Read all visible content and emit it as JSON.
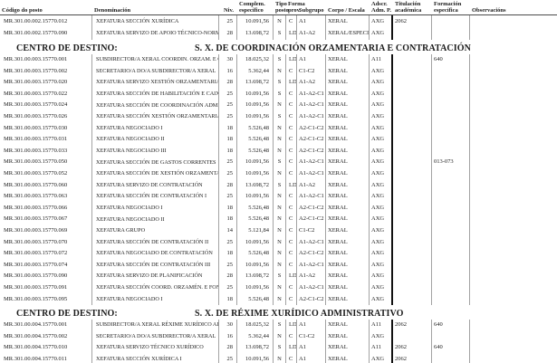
{
  "colors": {
    "text": "#1b1b1b",
    "grid_line": "#a3a3a3",
    "heavy_divider": "#111111",
    "header_rule": "#4a4a4a",
    "background": "#ffffff"
  },
  "table": {
    "headers": {
      "codigo": "Código do posto",
      "denominacion": "Denominación",
      "niv": "Niv.",
      "complem_line1": "Complem.",
      "complem_line2": "específico",
      "tipo_line1": "Tipo",
      "tipo_line2": "posto",
      "forma_line1": "Forma",
      "forma_line2": "prov.",
      "subgrupo": "Subgrupo",
      "corpo": "Corpo / Escala",
      "adscr_line1": "Adscr.",
      "adscr_line2": "Adm. P.",
      "titulacion_line1": "Titulación",
      "titulacion_line2": "académica",
      "formacion_line1": "Formación",
      "formacion_line2": "específica",
      "observacions": "Observacións"
    }
  },
  "sections": [
    {
      "title_label": "",
      "title": "",
      "rows": [
        {
          "codigo": "MR.301.00.002.15770.012",
          "denominacion": "XEFATURA SECCIÓN XURÍDICA",
          "niv": "25",
          "complem": "10.091,56",
          "tipo": "N",
          "forma": "C",
          "subgrupo": "A1",
          "corpo": "XERAL",
          "adscr": "AXG",
          "titulacion": "2062",
          "formacion": "",
          "observacions": ""
        },
        {
          "codigo": "MR.301.00.002.15770.090",
          "denominacion": "XEFATURA SERVIZO DE APOIO TÉCNICO-NORMATIVO",
          "niv": "28",
          "complem": "13.698,72",
          "tipo": "S",
          "forma": "LD",
          "subgrupo": "A1-A2",
          "corpo": "XERAL/ESPECIAL",
          "adscr": "AXG",
          "titulacion": "",
          "formacion": "",
          "observacions": ""
        }
      ]
    },
    {
      "title_label": "CENTRO DE DESTINO:",
      "title": "S. X. DE COORDINACIÓN ORZAMENTARIA E CONTRATACIÓN",
      "rows": [
        {
          "codigo": "MR.301.00.003.15770.001",
          "denominacion": "SUBDIRECTOR/A XERAL COORDIN. ORZAM. E CONTRATACIÓN",
          "niv": "30",
          "complem": "18.025,32",
          "tipo": "S",
          "forma": "LD",
          "subgrupo": "A1",
          "corpo": "XERAL",
          "adscr": "A11",
          "titulacion": "",
          "formacion": "640",
          "observacions": ""
        },
        {
          "codigo": "MR.301.00.003.15770.002",
          "denominacion": "SECRETARIO/A DO/A SUBDIRECTOR/A XERAL",
          "niv": "16",
          "complem": "5.362,44",
          "tipo": "N",
          "forma": "C",
          "subgrupo": "C1-C2",
          "corpo": "XERAL",
          "adscr": "AXG",
          "titulacion": "",
          "formacion": "",
          "observacions": ""
        },
        {
          "codigo": "MR.301.00.003.15770.020",
          "denominacion": "XEFATURA SERVIZO XESTIÓN ORZAMENTARIA",
          "niv": "28",
          "complem": "13.698,72",
          "tipo": "S",
          "forma": "LD",
          "subgrupo": "A1-A2",
          "corpo": "XERAL",
          "adscr": "AXG",
          "titulacion": "",
          "formacion": "",
          "observacions": ""
        },
        {
          "codigo": "MR.301.00.003.15770.022",
          "denominacion": "XEFATURA SECCIÓN DE HABILITACIÓN E CAIXA",
          "niv": "25",
          "complem": "10.091,56",
          "tipo": "S",
          "forma": "C",
          "subgrupo": "A1-A2-C1",
          "corpo": "XERAL",
          "adscr": "AXG",
          "titulacion": "",
          "formacion": "",
          "observacions": ""
        },
        {
          "codigo": "MR.301.00.003.15770.024",
          "denominacion": "XEFATURA SECCIÓN DE COORDINACIÓN ADMINISTRATIVA",
          "niv": "25",
          "complem": "10.091,56",
          "tipo": "N",
          "forma": "C",
          "subgrupo": "A1-A2-C1",
          "corpo": "XERAL",
          "adscr": "AXG",
          "titulacion": "",
          "formacion": "",
          "observacions": ""
        },
        {
          "codigo": "MR.301.00.003.15770.026",
          "denominacion": "XEFATURA SECCIÓN XESTIÓN ORZAMENTARIA I",
          "niv": "25",
          "complem": "10.091,56",
          "tipo": "S",
          "forma": "C",
          "subgrupo": "A1-A2-C1",
          "corpo": "XERAL",
          "adscr": "AXG",
          "titulacion": "",
          "formacion": "",
          "observacions": ""
        },
        {
          "codigo": "MR.301.00.003.15770.030",
          "denominacion": "XEFATURA NEGOCIADO I",
          "niv": "18",
          "complem": "5.526,48",
          "tipo": "N",
          "forma": "C",
          "subgrupo": "A2-C1-C2",
          "corpo": "XERAL",
          "adscr": "AXG",
          "titulacion": "",
          "formacion": "",
          "observacions": ""
        },
        {
          "codigo": "MR.301.00.003.15770.031",
          "denominacion": "XEFATURA NEGOCIADO II",
          "niv": "18",
          "complem": "5.526,48",
          "tipo": "N",
          "forma": "C",
          "subgrupo": "A2-C1-C2",
          "corpo": "XERAL",
          "adscr": "AXG",
          "titulacion": "",
          "formacion": "",
          "observacions": ""
        },
        {
          "codigo": "MR.301.00.003.15770.033",
          "denominacion": "XEFATURA NEGOCIADO III",
          "niv": "18",
          "complem": "5.526,48",
          "tipo": "N",
          "forma": "C",
          "subgrupo": "A2-C1-C2",
          "corpo": "XERAL",
          "adscr": "AXG",
          "titulacion": "",
          "formacion": "",
          "observacions": ""
        },
        {
          "codigo": "MR.301.00.003.15770.050",
          "denominacion": "XEFATURA SECCIÓN DE GASTOS CORRENTES",
          "niv": "25",
          "complem": "10.091,56",
          "tipo": "S",
          "forma": "C",
          "subgrupo": "A1-A2-C1",
          "corpo": "XERAL",
          "adscr": "AXG",
          "titulacion": "",
          "formacion": "013-073",
          "observacions": ""
        },
        {
          "codigo": "MR.301.00.003.15770.052",
          "denominacion": "XEFATURA SECCIÓN DE XESTIÓN ORZAMENTARIA II",
          "niv": "25",
          "complem": "10.091,56",
          "tipo": "N",
          "forma": "C",
          "subgrupo": "A1-A2-C1",
          "corpo": "XERAL",
          "adscr": "AXG",
          "titulacion": "",
          "formacion": "",
          "observacions": ""
        },
        {
          "codigo": "MR.301.00.003.15770.060",
          "denominacion": "XEFATURA SERVIZO DE CONTRATACIÓN",
          "niv": "28",
          "complem": "13.698,72",
          "tipo": "S",
          "forma": "LD",
          "subgrupo": "A1-A2",
          "corpo": "XERAL",
          "adscr": "AXG",
          "titulacion": "",
          "formacion": "",
          "observacions": ""
        },
        {
          "codigo": "MR.301.00.003.15770.063",
          "denominacion": "XEFATURA SECCIÓN DE CONTRATACIÓN I",
          "niv": "25",
          "complem": "10.091,56",
          "tipo": "N",
          "forma": "C",
          "subgrupo": "A1-A2-C1",
          "corpo": "XERAL",
          "adscr": "AXG",
          "titulacion": "",
          "formacion": "",
          "observacions": ""
        },
        {
          "codigo": "MR.301.00.003.15770.066",
          "denominacion": "XEFATURA NEGOCIADO I",
          "niv": "18",
          "complem": "5.526,48",
          "tipo": "N",
          "forma": "C",
          "subgrupo": "A2-C1-C2",
          "corpo": "XERAL",
          "adscr": "AXG",
          "titulacion": "",
          "formacion": "",
          "observacions": ""
        },
        {
          "codigo": "MR.301.00.003.15770.067",
          "denominacion": "XEFATURA NEGOCIADO II",
          "niv": "18",
          "complem": "5.526,48",
          "tipo": "N",
          "forma": "C",
          "subgrupo": "A2-C1-C2",
          "corpo": "XERAL",
          "adscr": "AXG",
          "titulacion": "",
          "formacion": "",
          "observacions": ""
        },
        {
          "codigo": "MR.301.00.003.15770.069",
          "denominacion": "XEFATURA GRUPO",
          "niv": "14",
          "complem": "5.121,84",
          "tipo": "N",
          "forma": "C",
          "subgrupo": "C1-C2",
          "corpo": "XERAL",
          "adscr": "AXG",
          "titulacion": "",
          "formacion": "",
          "observacions": ""
        },
        {
          "codigo": "MR.301.00.003.15770.070",
          "denominacion": "XEFATURA SECCIÓN DE CONTRATACIÓN II",
          "niv": "25",
          "complem": "10.091,56",
          "tipo": "N",
          "forma": "C",
          "subgrupo": "A1-A2-C1",
          "corpo": "XERAL",
          "adscr": "AXG",
          "titulacion": "",
          "formacion": "",
          "observacions": ""
        },
        {
          "codigo": "MR.301.00.003.15770.072",
          "denominacion": "XEFATURA NEGOCIADO DE CONTRATACIÓN",
          "niv": "18",
          "complem": "5.526,48",
          "tipo": "N",
          "forma": "C",
          "subgrupo": "A2-C1-C2",
          "corpo": "XERAL",
          "adscr": "AXG",
          "titulacion": "",
          "formacion": "",
          "observacions": ""
        },
        {
          "codigo": "MR.301.00.003.15770.074",
          "denominacion": "XEFATURA SECCIÓN DE CONTRATACIÓN III",
          "niv": "25",
          "complem": "10.091,56",
          "tipo": "N",
          "forma": "C",
          "subgrupo": "A1-A2-C1",
          "corpo": "XERAL",
          "adscr": "AXG",
          "titulacion": "",
          "formacion": "",
          "observacions": ""
        },
        {
          "codigo": "MR.301.00.003.15770.090",
          "denominacion": "XEFATURA SERVIZO DE PLANIFICACIÓN",
          "niv": "28",
          "complem": "13.698,72",
          "tipo": "S",
          "forma": "LD",
          "subgrupo": "A1-A2",
          "corpo": "XERAL",
          "adscr": "AXG",
          "titulacion": "",
          "formacion": "",
          "observacions": ""
        },
        {
          "codigo": "MR.301.00.003.15770.091",
          "denominacion": "XEFATURA SECCIÓN COORD. ORZAMÉN. E FONDOS AGRARIOS",
          "niv": "25",
          "complem": "10.091,56",
          "tipo": "N",
          "forma": "C",
          "subgrupo": "A1-A2-C1",
          "corpo": "XERAL",
          "adscr": "AXG",
          "titulacion": "",
          "formacion": "",
          "observacions": ""
        },
        {
          "codigo": "MR.301.00.003.15770.095",
          "denominacion": "XEFATURA NEGOCIADO I",
          "niv": "18",
          "complem": "5.526,48",
          "tipo": "N",
          "forma": "C",
          "subgrupo": "A2-C1-C2",
          "corpo": "XERAL",
          "adscr": "AXG",
          "titulacion": "",
          "formacion": "",
          "observacions": ""
        }
      ]
    },
    {
      "title_label": "CENTRO DE DESTINO:",
      "title": "S. X. DE RÉXIME XURÍDICO ADMINISTRATIVO",
      "rows": [
        {
          "codigo": "MR.301.00.004.15770.001",
          "denominacion": "SUBDIRECTOR/A XERAL RÉXIME XURÍDICO ADMINISTRATIVO",
          "niv": "30",
          "complem": "18.025,32",
          "tipo": "S",
          "forma": "LD",
          "subgrupo": "A1",
          "corpo": "XERAL",
          "adscr": "A11",
          "titulacion": "2062",
          "formacion": "640",
          "observacions": ""
        },
        {
          "codigo": "MR.301.00.004.15770.002",
          "denominacion": "SECRETARIO/A DO/A SUBDIRECTOR/A XERAL",
          "niv": "16",
          "complem": "5.362,44",
          "tipo": "N",
          "forma": "C",
          "subgrupo": "C1-C2",
          "corpo": "XERAL",
          "adscr": "AXG",
          "titulacion": "",
          "formacion": "",
          "observacions": ""
        },
        {
          "codigo": "MR.301.00.004.15770.010",
          "denominacion": "XEFATURA SERVIZO TÉCNICO XURÍDICO",
          "niv": "28",
          "complem": "13.698,72",
          "tipo": "S",
          "forma": "LD",
          "subgrupo": "A1",
          "corpo": "XERAL",
          "adscr": "A11",
          "titulacion": "2062",
          "formacion": "640",
          "observacions": ""
        },
        {
          "codigo": "MR.301.00.004.15770.011",
          "denominacion": "XEFATURA SECCIÓN XURÍDICA I",
          "niv": "25",
          "complem": "10.091,56",
          "tipo": "N",
          "forma": "C",
          "subgrupo": "A1",
          "corpo": "XERAL",
          "adscr": "AXG",
          "titulacion": "2062",
          "formacion": "",
          "observacions": ""
        }
      ]
    }
  ]
}
